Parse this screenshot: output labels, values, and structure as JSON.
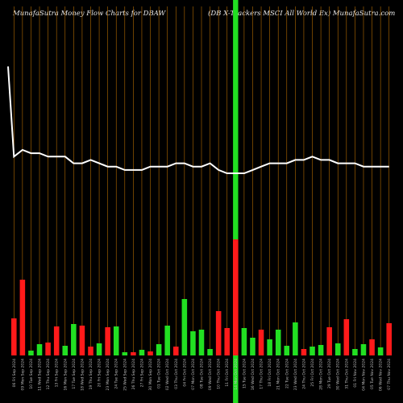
{
  "header": {
    "title_left": "MunafaSutra  Money Flow  Charts for DBAW",
    "title_right": "(DB X-Trackers MSCI All World Ex) MunafaSutra.com"
  },
  "chart_data": {
    "type": "bar",
    "title": "MunafaSutra  Money Flow  Charts for DBAW",
    "subtitle": "(DB X-Trackers MSCI All World Ex) MunafaSutra.com",
    "categories": [
      "06 Fri Sep 2024",
      "09 Mon Sep 2024",
      "10 Tue Sep 2024",
      "11 Wed Sep 2024",
      "12 Thu Sep 2024",
      "13 Fri Sep 2024",
      "16 Mon Sep 2024",
      "17 Tue Sep 2024",
      "18 Wed Sep 2024",
      "19 Thu Sep 2024",
      "20 Fri Sep 2024",
      "23 Mon Sep 2024",
      "24 Tue Sep 2024",
      "25 Wed Sep 2024",
      "26 Thu Sep 2024",
      "27 Fri Sep 2024",
      "30 Mon Sep 2024",
      "01 Tue Oct 2024",
      "02 Wed Oct 2024",
      "03 Thu Oct 2024",
      "04 Fri Oct 2024",
      "07 Mon Oct 2024",
      "08 Tue Oct 2024",
      "09 Wed Oct 2024",
      "10 Thu Oct 2024",
      "11 Fri Oct 2024",
      "14 Mon Oct 2024",
      "15 Tue Oct 2024",
      "16 Wed Oct 2024",
      "17 Thu Oct 2024",
      "18 Fri Oct 2024",
      "21 Mon Oct 2024",
      "22 Tue Oct 2024",
      "23 Wed Oct 2024",
      "24 Thu Oct 2024",
      "25 Fri Oct 2024",
      "28 Mon Oct 2024",
      "29 Tue Oct 2024",
      "30 Wed Oct 2024",
      "31 Thu Oct 2024",
      "01 Fri Nov 2024",
      "04 Mon Nov 2024",
      "05 Tue Nov 2024",
      "06 Wed Nov 2024",
      "07 Thu Nov 2024"
    ],
    "volume": [
      46,
      94,
      6,
      14,
      16,
      36,
      12,
      39,
      37,
      11,
      15,
      35,
      36,
      4,
      4,
      7,
      5,
      14,
      37,
      11,
      70,
      30,
      32,
      8,
      55,
      34,
      144,
      34,
      22,
      32,
      20,
      32,
      12,
      41,
      8,
      11,
      13,
      35,
      15,
      45,
      8,
      14,
      20,
      10,
      40
    ],
    "direction": [
      "red",
      "red",
      "green",
      "green",
      "red",
      "red",
      "green",
      "green",
      "red",
      "red",
      "green",
      "red",
      "green",
      "green",
      "red",
      "green",
      "red",
      "green",
      "green",
      "red",
      "green",
      "green",
      "green",
      "green",
      "red",
      "red",
      "red",
      "green",
      "green",
      "red",
      "green",
      "green",
      "green",
      "green",
      "red",
      "green",
      "green",
      "red",
      "green",
      "red",
      "green",
      "green",
      "red",
      "green",
      "red"
    ],
    "price_line": [
      215,
      217,
      216,
      216,
      215,
      215,
      215,
      213,
      213,
      214,
      213,
      212,
      212,
      211,
      211,
      211,
      212,
      212,
      212,
      213,
      213,
      212,
      212,
      213,
      211,
      210,
      210,
      210,
      211,
      212,
      213,
      213,
      213,
      214,
      214,
      215,
      214,
      214,
      213,
      213,
      213,
      212,
      212,
      212,
      212
    ],
    "price_start": 242,
    "highlight_bar_index": 26,
    "grid": true,
    "grid_color": "#b36b00",
    "colors": {
      "up": "#22e022",
      "down": "#ff1a1a",
      "line": "#ffffff",
      "highlight": "#22e022",
      "background": "#000000"
    }
  }
}
